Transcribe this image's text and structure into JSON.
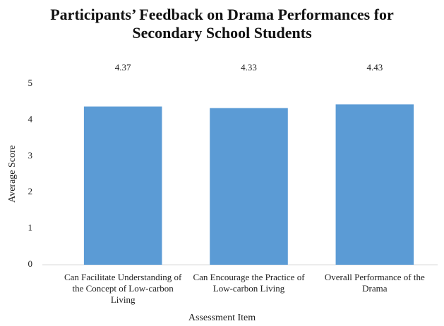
{
  "chart_data": {
    "type": "bar",
    "title": "Participants’ Feedback on Drama Performances for Secondary School Students",
    "x_label": "Assessment Item",
    "y_label": "Average Score",
    "categories": [
      "Can Facilitate Understanding of the Concept of Low-carbon Living",
      "Can Encourage the Practice of Low-carbon Living",
      "Overall Performance of the Drama"
    ],
    "values": [
      4.37,
      4.33,
      4.43
    ],
    "color": "#5b9bd5",
    "ylim": [
      0,
      5
    ],
    "yticks": [
      0,
      1,
      2,
      3,
      4,
      5
    ],
    "grid": false
  }
}
